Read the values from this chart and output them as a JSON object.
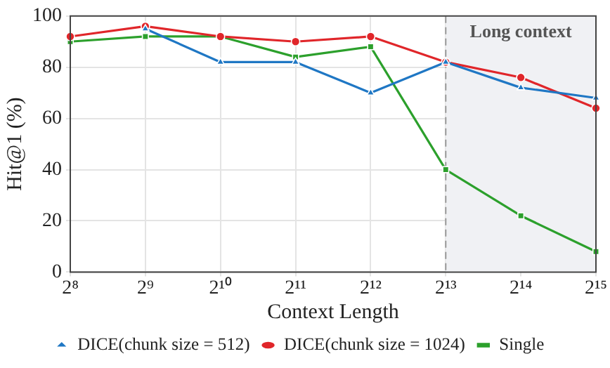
{
  "chart_data": {
    "type": "line",
    "xlabel": "Context Length",
    "ylabel": "Hit@1 (%)",
    "categories": [
      "2⁸",
      "2⁹",
      "2¹⁰",
      "2¹¹",
      "2¹²",
      "2¹³",
      "2¹⁴",
      "2¹⁵"
    ],
    "series": [
      {
        "name": "DICE(chunk size = 512)",
        "color": "#1f77c4",
        "marker": "triangle",
        "values": [
          null,
          95,
          82,
          82,
          70,
          82,
          72,
          68
        ]
      },
      {
        "name": "DICE(chunk size = 1024)",
        "color": "#e0262a",
        "marker": "circle",
        "values": [
          92,
          96,
          92,
          90,
          92,
          82,
          76,
          64
        ]
      },
      {
        "name": "Single",
        "color": "#2ca02c",
        "marker": "square",
        "values": [
          90,
          92,
          92,
          84,
          88,
          40,
          22,
          8
        ]
      }
    ],
    "ylim": [
      0,
      100
    ],
    "yticks": [
      0,
      20,
      40,
      60,
      80,
      100
    ],
    "grid": true,
    "legend": "bottom",
    "line_style": "solid",
    "ref_lines": [
      {
        "axis": "x",
        "value": "2¹³",
        "color": "#999999",
        "line_style": "dashed"
      }
    ],
    "bands": [
      {
        "axis": "x",
        "from": "2¹³",
        "to": "2¹⁵",
        "label": "Long context",
        "color": "#f0f1f4"
      }
    ]
  }
}
